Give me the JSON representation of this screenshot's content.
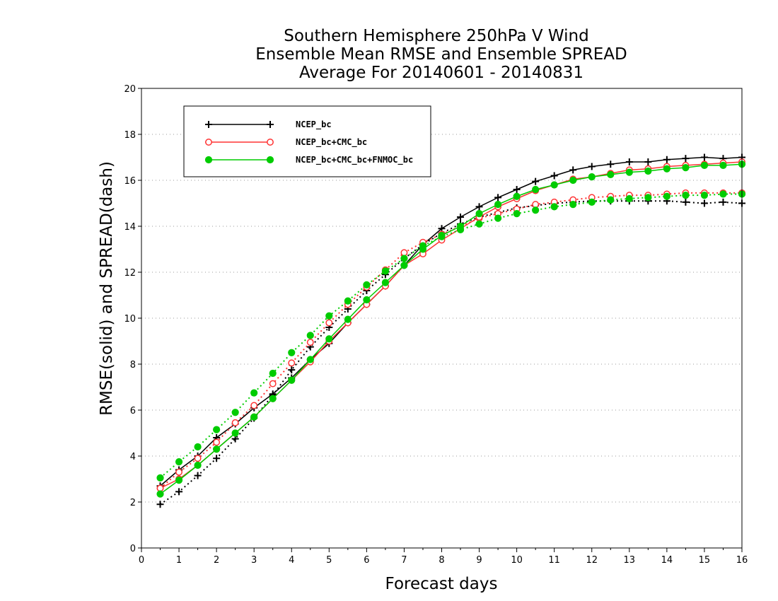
{
  "chart_data": {
    "type": "line",
    "title_lines": [
      "Southern Hemisphere 250hPa V Wind",
      "Ensemble Mean RMSE and Ensemble SPREAD",
      "Average For 20140601 - 20140831"
    ],
    "xlabel": "Forecast days",
    "ylabel": "RMSE(solid) and SPREAD(dash)",
    "xlim": [
      0,
      16
    ],
    "ylim": [
      0,
      20
    ],
    "xticks": [
      0,
      1,
      2,
      3,
      4,
      5,
      6,
      7,
      8,
      9,
      10,
      11,
      12,
      13,
      14,
      15,
      16
    ],
    "yticks": [
      0,
      2,
      4,
      6,
      8,
      10,
      12,
      14,
      16,
      18,
      20
    ],
    "grid": true,
    "legend_position": "top-left",
    "x": [
      0.5,
      1,
      1.5,
      2,
      2.5,
      3,
      3.5,
      4,
      4.5,
      5,
      5.5,
      6,
      6.5,
      7,
      7.5,
      8,
      8.5,
      9,
      9.5,
      10,
      10.5,
      11,
      11.5,
      12,
      12.5,
      13,
      13.5,
      14,
      14.5,
      15,
      15.5,
      16
    ],
    "series": [
      {
        "name": "NCEP_bc",
        "color": "#000000",
        "marker": "plus",
        "rmse": [
          2.7,
          3.4,
          4.0,
          4.8,
          5.4,
          6.1,
          6.7,
          7.4,
          8.2,
          8.9,
          9.8,
          10.6,
          11.4,
          12.3,
          13.2,
          13.9,
          14.4,
          14.85,
          15.25,
          15.6,
          15.95,
          16.2,
          16.45,
          16.6,
          16.7,
          16.8,
          16.8,
          16.9,
          16.95,
          17.0,
          16.95,
          17.0
        ],
        "spread": [
          1.9,
          2.45,
          3.15,
          3.9,
          4.75,
          5.65,
          6.65,
          7.75,
          8.75,
          9.6,
          10.4,
          11.2,
          11.9,
          12.6,
          13.2,
          13.7,
          14.1,
          14.4,
          14.6,
          14.8,
          14.9,
          15.0,
          15.05,
          15.1,
          15.1,
          15.1,
          15.1,
          15.1,
          15.05,
          15.0,
          15.05,
          15.0
        ]
      },
      {
        "name": "NCEP_bc+CMC_bc",
        "color": "#ff3333",
        "marker": "open-circle",
        "rmse": [
          2.6,
          3.0,
          3.6,
          4.3,
          5.0,
          5.7,
          6.5,
          7.3,
          8.1,
          9.0,
          9.8,
          10.6,
          11.4,
          12.3,
          12.8,
          13.4,
          13.9,
          14.4,
          14.85,
          15.2,
          15.55,
          15.8,
          16.05,
          16.15,
          16.3,
          16.45,
          16.5,
          16.6,
          16.65,
          16.7,
          16.75,
          16.8
        ],
        "spread": [
          2.6,
          3.3,
          3.9,
          4.6,
          5.45,
          6.2,
          7.15,
          8.05,
          8.95,
          9.8,
          10.6,
          11.35,
          12.1,
          12.85,
          13.3,
          13.65,
          14.0,
          14.35,
          14.55,
          14.75,
          14.95,
          15.05,
          15.15,
          15.25,
          15.3,
          15.35,
          15.35,
          15.4,
          15.45,
          15.45,
          15.45,
          15.45
        ]
      },
      {
        "name": "NCEP_bc+CMC_bc+FNMOC_bc",
        "color": "#00cc00",
        "marker": "filled-circle",
        "rmse": [
          2.35,
          2.95,
          3.6,
          4.3,
          5.0,
          5.7,
          6.5,
          7.3,
          8.2,
          9.1,
          9.95,
          10.8,
          11.55,
          12.3,
          13.0,
          13.6,
          14.0,
          14.55,
          14.95,
          15.3,
          15.6,
          15.8,
          16.0,
          16.15,
          16.25,
          16.35,
          16.4,
          16.5,
          16.55,
          16.65,
          16.65,
          16.7
        ],
        "spread": [
          3.05,
          3.75,
          4.4,
          5.15,
          5.9,
          6.75,
          7.6,
          8.5,
          9.25,
          10.1,
          10.75,
          11.45,
          12.05,
          12.6,
          13.15,
          13.55,
          13.85,
          14.1,
          14.35,
          14.55,
          14.7,
          14.85,
          14.95,
          15.05,
          15.15,
          15.2,
          15.25,
          15.3,
          15.35,
          15.35,
          15.4,
          15.4
        ]
      }
    ]
  }
}
